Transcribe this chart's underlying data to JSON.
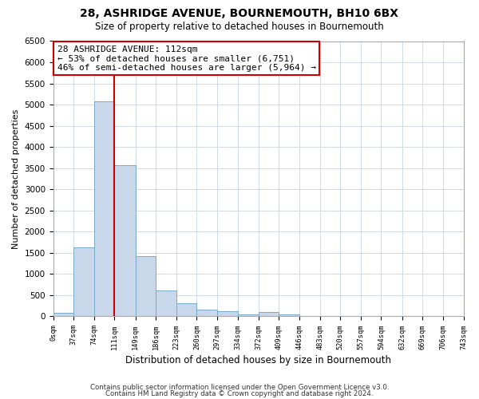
{
  "title": "28, ASHRIDGE AVENUE, BOURNEMOUTH, BH10 6BX",
  "subtitle": "Size of property relative to detached houses in Bournemouth",
  "xlabel": "Distribution of detached houses by size in Bournemouth",
  "ylabel": "Number of detached properties",
  "bin_edges": [
    0,
    37,
    74,
    111,
    149,
    186,
    223,
    260,
    297,
    334,
    372,
    409,
    446,
    483,
    520,
    557,
    594,
    632,
    669,
    706,
    743
  ],
  "bin_counts": [
    75,
    1625,
    5075,
    3575,
    1425,
    615,
    310,
    150,
    125,
    50,
    100,
    50,
    0,
    0,
    0,
    0,
    0,
    0,
    0,
    0
  ],
  "bar_color": "#c8d8ea",
  "bar_edge_color": "#7aaac8",
  "vline_x": 111,
  "vline_color": "#cc0000",
  "annotation_text": "28 ASHRIDGE AVENUE: 112sqm\n← 53% of detached houses are smaller (6,751)\n46% of semi-detached houses are larger (5,964) →",
  "annotation_box_facecolor": "#ffffff",
  "annotation_box_edgecolor": "#cc0000",
  "ylim": [
    0,
    6500
  ],
  "yticks": [
    0,
    500,
    1000,
    1500,
    2000,
    2500,
    3000,
    3500,
    4000,
    4500,
    5000,
    5500,
    6000,
    6500
  ],
  "xtick_labels": [
    "0sqm",
    "37sqm",
    "74sqm",
    "111sqm",
    "149sqm",
    "186sqm",
    "223sqm",
    "260sqm",
    "297sqm",
    "334sqm",
    "372sqm",
    "409sqm",
    "446sqm",
    "483sqm",
    "520sqm",
    "557sqm",
    "594sqm",
    "632sqm",
    "669sqm",
    "706sqm",
    "743sqm"
  ],
  "footer_line1": "Contains HM Land Registry data © Crown copyright and database right 2024.",
  "footer_line2": "Contains public sector information licensed under the Open Government Licence v3.0.",
  "fig_facecolor": "#ffffff",
  "plot_facecolor": "#ffffff",
  "grid_color": "#c8d4e0"
}
